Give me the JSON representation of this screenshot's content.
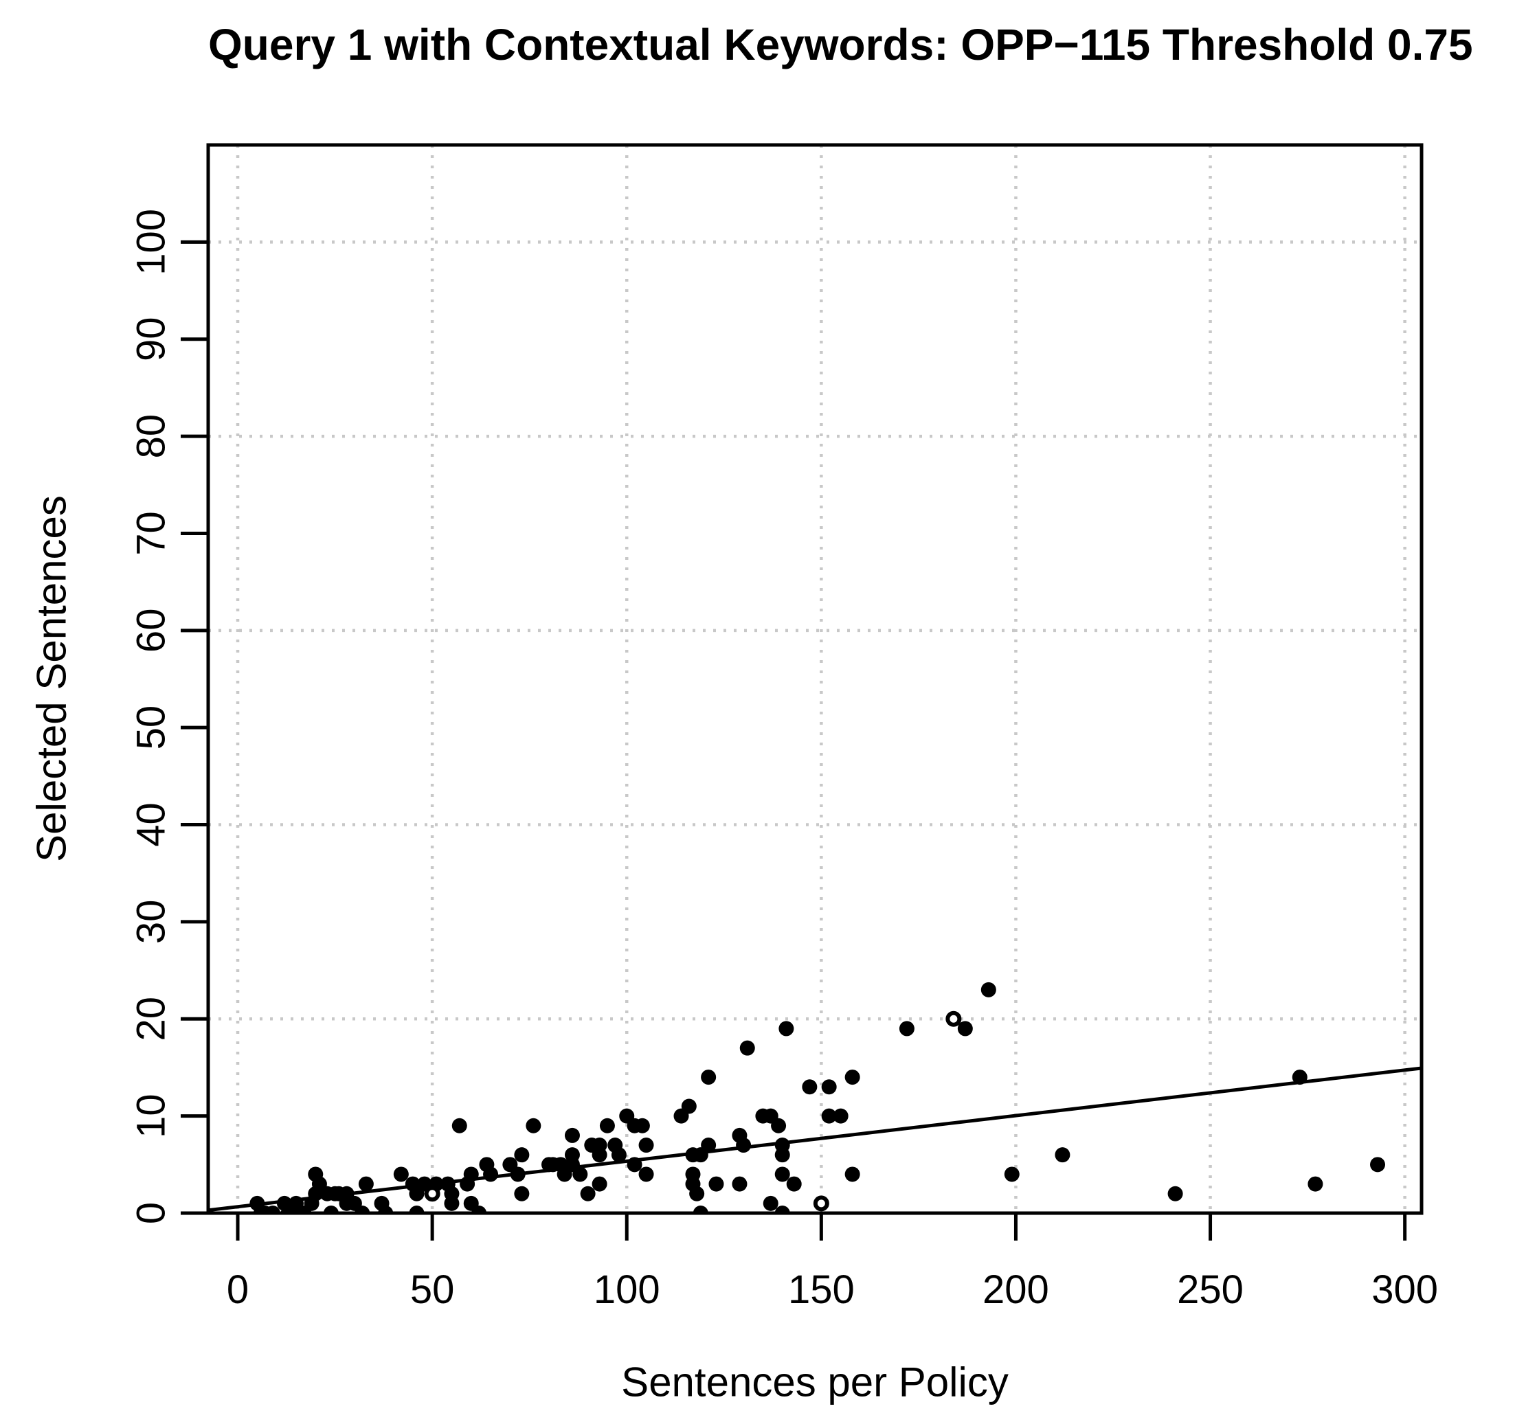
{
  "chart_data": {
    "type": "scatter",
    "title": "Query 1 with Contextual Keywords: OPP−115 Threshold 0.75",
    "xlabel": "Sentences per Policy",
    "ylabel": "Selected Sentences",
    "axes": {
      "x": {
        "min": -7.6,
        "max": 304.3,
        "ticks": [
          0,
          50,
          100,
          150,
          200,
          250,
          300
        ],
        "grid": [
          0,
          50,
          100,
          150,
          200,
          250,
          300
        ]
      },
      "y": {
        "min": 0,
        "max": 110,
        "ticks": [
          0,
          10,
          20,
          30,
          40,
          50,
          60,
          70,
          80,
          90,
          100
        ],
        "grid": [
          0,
          20,
          40,
          60,
          80,
          100
        ]
      }
    },
    "grid_on": true,
    "legend": "none",
    "trendline": {
      "x1": -7.6,
      "y1": 0.3,
      "x2": 304.3,
      "y2": 14.93
    },
    "points": [
      [
        5,
        1
      ],
      [
        6,
        0
      ],
      [
        7,
        0
      ],
      [
        9,
        0
      ],
      [
        12,
        1
      ],
      [
        13,
        0
      ],
      [
        14,
        0
      ],
      [
        15,
        1
      ],
      [
        17,
        0
      ],
      [
        19,
        1
      ],
      [
        20,
        4
      ],
      [
        20,
        2
      ],
      [
        21,
        3
      ],
      [
        23,
        2
      ],
      [
        24,
        0
      ],
      [
        25,
        2
      ],
      [
        26,
        2
      ],
      [
        28,
        2
      ],
      [
        28,
        1
      ],
      [
        30,
        1
      ],
      [
        32,
        0
      ],
      [
        33,
        3
      ],
      [
        37,
        1
      ],
      [
        38,
        0
      ],
      [
        42,
        4
      ],
      [
        45,
        3
      ],
      [
        46,
        2
      ],
      [
        46,
        0
      ],
      [
        48,
        3
      ],
      [
        51,
        3
      ],
      [
        54,
        3
      ],
      [
        55,
        2
      ],
      [
        55,
        1
      ],
      [
        57,
        9
      ],
      [
        59,
        3
      ],
      [
        60,
        4
      ],
      [
        60,
        1
      ],
      [
        62,
        0
      ],
      [
        64,
        5
      ],
      [
        65,
        4
      ],
      [
        70,
        5
      ],
      [
        72,
        4
      ],
      [
        73,
        6
      ],
      [
        73,
        2
      ],
      [
        76,
        9
      ],
      [
        80,
        5
      ],
      [
        81,
        5
      ],
      [
        83,
        5
      ],
      [
        84,
        4
      ],
      [
        86,
        8
      ],
      [
        86,
        6
      ],
      [
        86,
        5
      ],
      [
        88,
        4
      ],
      [
        90,
        2
      ],
      [
        91,
        7
      ],
      [
        93,
        7
      ],
      [
        93,
        6
      ],
      [
        93,
        3
      ],
      [
        95,
        9
      ],
      [
        97,
        7
      ],
      [
        98,
        6
      ],
      [
        100,
        10
      ],
      [
        102,
        9
      ],
      [
        102,
        5
      ],
      [
        104,
        9
      ],
      [
        105,
        7
      ],
      [
        105,
        4
      ],
      [
        114,
        10
      ],
      [
        116,
        11
      ],
      [
        117,
        6
      ],
      [
        117,
        4
      ],
      [
        117,
        3
      ],
      [
        118,
        2
      ],
      [
        119,
        6
      ],
      [
        119,
        0
      ],
      [
        121,
        7
      ],
      [
        121,
        14
      ],
      [
        123,
        3
      ],
      [
        129,
        8
      ],
      [
        129,
        3
      ],
      [
        130,
        7
      ],
      [
        131,
        17
      ],
      [
        135,
        10
      ],
      [
        137,
        10
      ],
      [
        137,
        1
      ],
      [
        139,
        9
      ],
      [
        140,
        7
      ],
      [
        140,
        6
      ],
      [
        140,
        4
      ],
      [
        140,
        0
      ],
      [
        141,
        19
      ],
      [
        143,
        3
      ],
      [
        147,
        13
      ],
      [
        152,
        13
      ],
      [
        152,
        10
      ],
      [
        155,
        10
      ],
      [
        158,
        14
      ],
      [
        158,
        4
      ],
      [
        172,
        19
      ],
      [
        187,
        19
      ],
      [
        193,
        23
      ],
      [
        199,
        4
      ],
      [
        212,
        6
      ],
      [
        241,
        2
      ],
      [
        273,
        14
      ],
      [
        277,
        3
      ],
      [
        293,
        5
      ]
    ],
    "open_points": [
      [
        50,
        2
      ],
      [
        150,
        1
      ],
      [
        184,
        20
      ]
    ],
    "colors": {
      "points": "#000000",
      "trendline": "#000000",
      "grid": "#c8c8c8",
      "axis": "#000000",
      "background": "#ffffff"
    }
  }
}
